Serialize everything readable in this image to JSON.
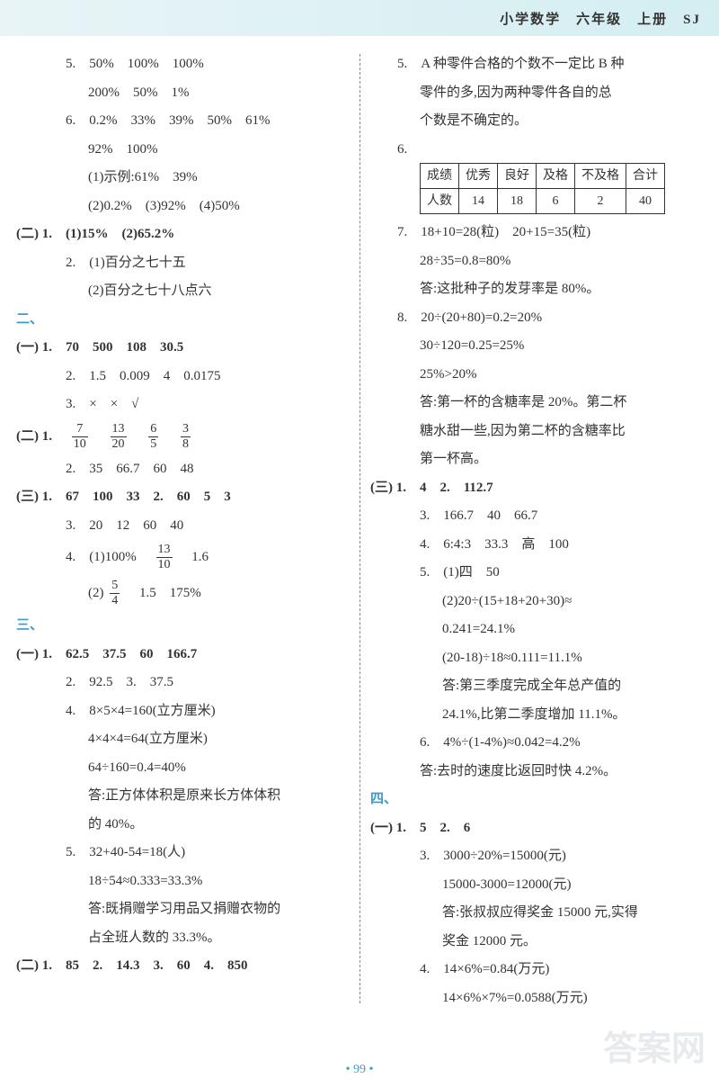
{
  "header": "小学数学　六年级　上册　SJ",
  "left": {
    "l1": "5.　50%　100%　100%",
    "l2": "200%　50%　1%",
    "l3": "6.　0.2%　33%　39%　50%　61%",
    "l4": "92%　100%",
    "l5": "(1)示例:61%　39%",
    "l6": "(2)0.2%　(3)92%　(4)50%",
    "l7": "(二) 1.　(1)15%　(2)65.2%",
    "l8": "2.　(1)百分之七十五",
    "l9": "(2)百分之七十八点六",
    "sec2": "二、",
    "l10": "(一) 1.　70　500　108　30.5",
    "l11": "2.　1.5　0.009　4　0.0175",
    "l12": "3.　×　×　√",
    "l13a": "(二) 1.　",
    "f1n": "7",
    "f1d": "10",
    "f2n": "13",
    "f2d": "20",
    "f3n": "6",
    "f3d": "5",
    "f4n": "3",
    "f4d": "8",
    "l14": "2.　35　66.7　60　48",
    "l15": "(三) 1.　67　100　33　2.　60　5　3",
    "l16": "3.　20　12　60　40",
    "l17a": "4.　(1)100%　",
    "f5n": "13",
    "f5d": "10",
    "l17b": "　1.6",
    "l18a": "(2)",
    "f6n": "5",
    "f6d": "4",
    "l18b": "　1.5　175%",
    "sec3": "三、",
    "l19": "(一) 1.　62.5　37.5　60　166.7",
    "l20": "2.　92.5　3.　37.5",
    "l21": "4.　8×5×4=160(立方厘米)",
    "l22": "4×4×4=64(立方厘米)",
    "l23": "64÷160=0.4=40%",
    "l24": "答:正方体体积是原来长方体体积",
    "l25": "的 40%。",
    "l26": "5.　32+40-54=18(人)",
    "l27": "18÷54≈0.333=33.3%",
    "l28": "答:既捐赠学习用品又捐赠衣物的",
    "l29": "占全班人数的 33.3%。",
    "l30": "(二) 1.　85　2.　14.3　3.　60　4.　850"
  },
  "right": {
    "r1": "5.　A 种零件合格的个数不一定比 B 种",
    "r2": "零件的多,因为两种零件各自的总",
    "r3": "个数是不确定的。",
    "table": {
      "head": [
        "成绩",
        "优秀",
        "良好",
        "及格",
        "不及格",
        "合计"
      ],
      "row": [
        "人数",
        "14",
        "18",
        "6",
        "2",
        "40"
      ]
    },
    "r4": "7.　18+10=28(粒)　20+15=35(粒)",
    "r5": "28÷35=0.8=80%",
    "r6": "答:这批种子的发芽率是 80%。",
    "r7": "8.　20÷(20+80)=0.2=20%",
    "r8": "30÷120=0.25=25%",
    "r9": "25%>20%",
    "r10": "答:第一杯的含糖率是 20%。第二杯",
    "r11": "糖水甜一些,因为第二杯的含糖率比",
    "r12": "第一杯高。",
    "r13": "(三) 1.　4　2.　112.7",
    "r14": "3.　166.7　40　66.7",
    "r15": "4.　6:4:3　33.3　高　100",
    "r16": "5.　(1)四　50",
    "r17": "(2)20÷(15+18+20+30)≈",
    "r18": "0.241=24.1%",
    "r19": "(20-18)÷18≈0.111=11.1%",
    "r20": "答:第三季度完成全年总产值的",
    "r21": "24.1%,比第二季度增加 11.1%。",
    "r22": "6.　4%÷(1-4%)≈0.042=4.2%",
    "r23": "答:去时的速度比返回时快 4.2%。",
    "sec4": "四、",
    "r24": "(一) 1.　5　2.　6",
    "r25": "3.　3000÷20%=15000(元)",
    "r26": "15000-3000=12000(元)",
    "r27": "答:张叔叔应得奖金 15000 元,实得",
    "r28": "奖金 12000 元。",
    "r29": "4.　14×6%=0.84(万元)",
    "r30": "14×6%×7%=0.0588(万元)"
  },
  "footer": "• 99 •",
  "watermark": "答案网"
}
